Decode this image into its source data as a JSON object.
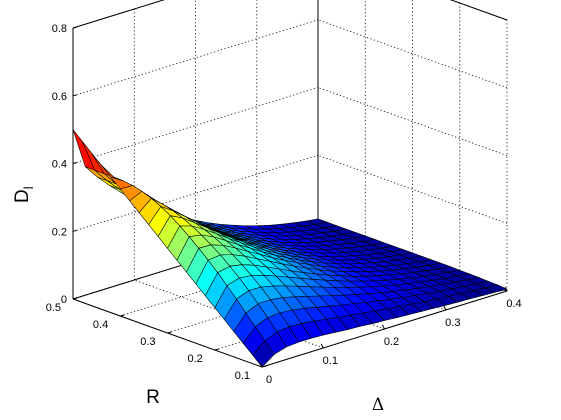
{
  "chart_data": {
    "type": "surface",
    "title": "",
    "xlabel": "Δ",
    "ylabel": "R",
    "zlabel": "D",
    "zlabel_subscript": "l",
    "x_ticks": [
      "0",
      "0.1",
      "0.2",
      "0.3",
      "0.4"
    ],
    "y_ticks": [
      "0.1",
      "0.2",
      "0.3",
      "0.4",
      "0.5"
    ],
    "z_ticks": [
      "0",
      "0.2",
      "0.4",
      "0.6",
      "0.8"
    ],
    "xlim": [
      0,
      0.4
    ],
    "ylim": [
      0.1,
      0.5
    ],
    "zlim": [
      0,
      0.8
    ],
    "grid": true,
    "colormap": "jet",
    "color_range": [
      0,
      0.5
    ],
    "x": [
      0.0,
      0.02,
      0.04,
      0.06,
      0.08,
      0.1,
      0.12,
      0.14,
      0.16,
      0.18,
      0.2,
      0.22,
      0.24,
      0.26,
      0.28,
      0.3,
      0.32,
      0.34,
      0.36,
      0.38,
      0.4
    ],
    "y": [
      0.1,
      0.12,
      0.14,
      0.16,
      0.18,
      0.2,
      0.22,
      0.24,
      0.26,
      0.28,
      0.3,
      0.32,
      0.34,
      0.36,
      0.38,
      0.4,
      0.42,
      0.44,
      0.46,
      0.48,
      0.5
    ],
    "z": [
      [
        0.0,
        0.026,
        0.037,
        0.04,
        0.04,
        0.038,
        0.035,
        0.032,
        0.03,
        0.027,
        0.025,
        0.022,
        0.02,
        0.018,
        0.016,
        0.014,
        0.012,
        0.011,
        0.009,
        0.007,
        0.005
      ],
      [
        0.025,
        0.056,
        0.071,
        0.075,
        0.073,
        0.069,
        0.064,
        0.058,
        0.053,
        0.048,
        0.043,
        0.038,
        0.034,
        0.03,
        0.026,
        0.022,
        0.019,
        0.016,
        0.013,
        0.01,
        0.008
      ],
      [
        0.05,
        0.087,
        0.103,
        0.106,
        0.103,
        0.097,
        0.089,
        0.081,
        0.073,
        0.066,
        0.058,
        0.052,
        0.045,
        0.039,
        0.034,
        0.029,
        0.024,
        0.02,
        0.016,
        0.012,
        0.009
      ],
      [
        0.075,
        0.118,
        0.134,
        0.135,
        0.13,
        0.121,
        0.111,
        0.101,
        0.091,
        0.081,
        0.072,
        0.063,
        0.055,
        0.047,
        0.04,
        0.034,
        0.028,
        0.023,
        0.018,
        0.014,
        0.01
      ],
      [
        0.1,
        0.149,
        0.163,
        0.162,
        0.154,
        0.143,
        0.131,
        0.118,
        0.106,
        0.094,
        0.083,
        0.072,
        0.062,
        0.053,
        0.045,
        0.038,
        0.031,
        0.025,
        0.019,
        0.015,
        0.011
      ],
      [
        0.125,
        0.179,
        0.19,
        0.186,
        0.176,
        0.162,
        0.148,
        0.133,
        0.119,
        0.105,
        0.092,
        0.08,
        0.069,
        0.058,
        0.049,
        0.041,
        0.033,
        0.027,
        0.021,
        0.016,
        0.011
      ],
      [
        0.15,
        0.207,
        0.215,
        0.208,
        0.195,
        0.179,
        0.162,
        0.145,
        0.129,
        0.114,
        0.099,
        0.086,
        0.073,
        0.062,
        0.052,
        0.043,
        0.035,
        0.028,
        0.022,
        0.016,
        0.012
      ],
      [
        0.175,
        0.234,
        0.238,
        0.228,
        0.212,
        0.193,
        0.175,
        0.156,
        0.138,
        0.121,
        0.105,
        0.09,
        0.077,
        0.065,
        0.054,
        0.045,
        0.036,
        0.029,
        0.022,
        0.017,
        0.012
      ],
      [
        0.2,
        0.259,
        0.258,
        0.245,
        0.226,
        0.205,
        0.185,
        0.164,
        0.145,
        0.127,
        0.11,
        0.094,
        0.08,
        0.067,
        0.056,
        0.046,
        0.037,
        0.029,
        0.023,
        0.017,
        0.012
      ],
      [
        0.225,
        0.283,
        0.277,
        0.26,
        0.238,
        0.215,
        0.193,
        0.171,
        0.15,
        0.131,
        0.113,
        0.097,
        0.082,
        0.069,
        0.057,
        0.047,
        0.038,
        0.03,
        0.023,
        0.017,
        0.012
      ],
      [
        0.25,
        0.305,
        0.293,
        0.272,
        0.248,
        0.223,
        0.199,
        0.176,
        0.154,
        0.134,
        0.116,
        0.099,
        0.084,
        0.07,
        0.058,
        0.047,
        0.038,
        0.03,
        0.023,
        0.017,
        0.012
      ],
      [
        0.275,
        0.325,
        0.307,
        0.282,
        0.256,
        0.229,
        0.204,
        0.18,
        0.157,
        0.137,
        0.118,
        0.1,
        0.085,
        0.071,
        0.058,
        0.048,
        0.038,
        0.03,
        0.023,
        0.017,
        0.012
      ],
      [
        0.3,
        0.342,
        0.318,
        0.29,
        0.261,
        0.233,
        0.207,
        0.182,
        0.159,
        0.138,
        0.119,
        0.101,
        0.085,
        0.071,
        0.059,
        0.048,
        0.038,
        0.03,
        0.023,
        0.017,
        0.012
      ],
      [
        0.325,
        0.356,
        0.326,
        0.295,
        0.265,
        0.236,
        0.209,
        0.184,
        0.16,
        0.139,
        0.119,
        0.102,
        0.086,
        0.072,
        0.059,
        0.048,
        0.038,
        0.03,
        0.023,
        0.017,
        0.012
      ],
      [
        0.35,
        0.367,
        0.332,
        0.299,
        0.267,
        0.237,
        0.21,
        0.184,
        0.161,
        0.139,
        0.12,
        0.102,
        0.086,
        0.072,
        0.059,
        0.048,
        0.038,
        0.03,
        0.023,
        0.017,
        0.012
      ],
      [
        0.375,
        0.374,
        0.335,
        0.3,
        0.268,
        0.238,
        0.21,
        0.185,
        0.161,
        0.139,
        0.12,
        0.102,
        0.086,
        0.072,
        0.059,
        0.048,
        0.038,
        0.03,
        0.023,
        0.017,
        0.012
      ],
      [
        0.4,
        0.378,
        0.336,
        0.301,
        0.268,
        0.238,
        0.21,
        0.185,
        0.161,
        0.139,
        0.12,
        0.102,
        0.086,
        0.072,
        0.059,
        0.048,
        0.038,
        0.03,
        0.023,
        0.017,
        0.012
      ],
      [
        0.425,
        0.379,
        0.337,
        0.301,
        0.268,
        0.238,
        0.21,
        0.185,
        0.161,
        0.14,
        0.12,
        0.102,
        0.086,
        0.072,
        0.059,
        0.048,
        0.038,
        0.03,
        0.023,
        0.017,
        0.012
      ],
      [
        0.45,
        0.379,
        0.337,
        0.301,
        0.268,
        0.238,
        0.21,
        0.185,
        0.161,
        0.14,
        0.12,
        0.102,
        0.086,
        0.072,
        0.059,
        0.048,
        0.038,
        0.03,
        0.023,
        0.017,
        0.012
      ],
      [
        0.475,
        0.379,
        0.337,
        0.301,
        0.268,
        0.238,
        0.21,
        0.185,
        0.161,
        0.14,
        0.12,
        0.102,
        0.086,
        0.072,
        0.059,
        0.048,
        0.038,
        0.03,
        0.023,
        0.017,
        0.012
      ],
      [
        0.5,
        0.379,
        0.337,
        0.301,
        0.268,
        0.238,
        0.21,
        0.185,
        0.161,
        0.14,
        0.12,
        0.102,
        0.086,
        0.072,
        0.059,
        0.048,
        0.038,
        0.03,
        0.023,
        0.017,
        0.012
      ]
    ]
  }
}
